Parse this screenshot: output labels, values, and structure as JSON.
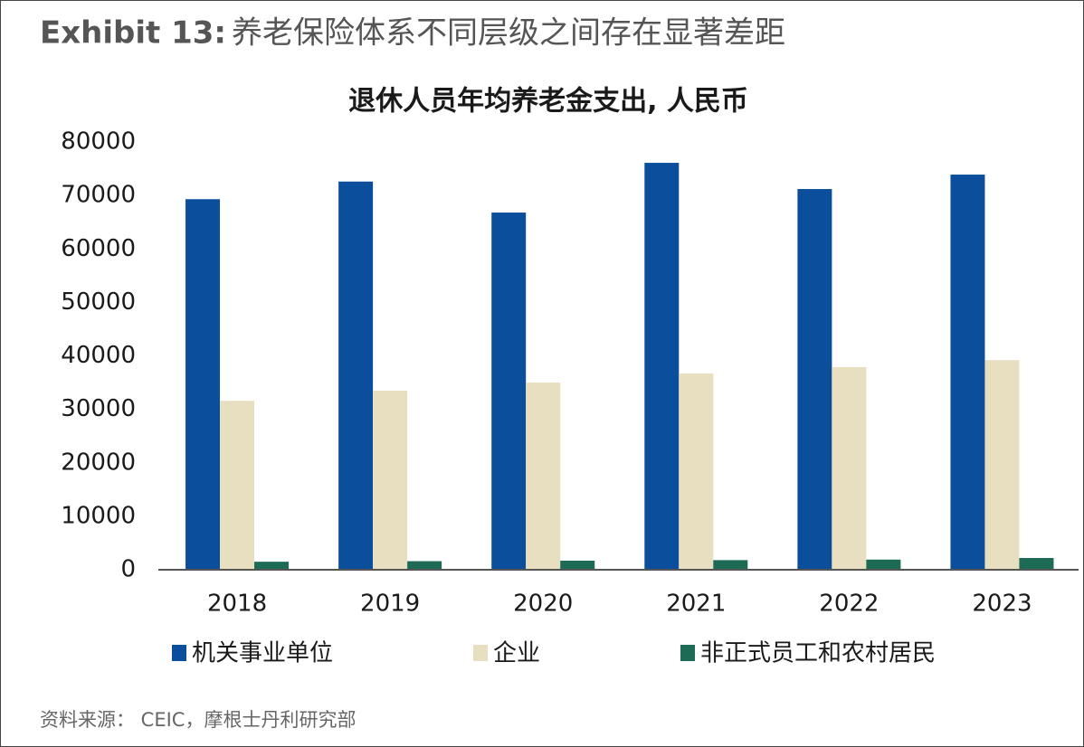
{
  "header": {
    "label": "Exhibit 13:",
    "title": "养老保险体系不同层级之间存在显著差距"
  },
  "chart_data": {
    "type": "bar",
    "title": "退休人员年均养老金支出, 人民币",
    "categories": [
      "2018",
      "2019",
      "2020",
      "2021",
      "2022",
      "2023"
    ],
    "series": [
      {
        "name": "机关事业单位",
        "color": "#0b4f9c",
        "values": [
          69300,
          72600,
          66800,
          76100,
          71200,
          73900
        ]
      },
      {
        "name": "企业",
        "color": "#e8dfc0",
        "values": [
          31600,
          33500,
          35000,
          36700,
          37900,
          39200
        ]
      },
      {
        "name": "非正式员工和农村居民",
        "color": "#1e6b55",
        "values": [
          1500,
          1600,
          1700,
          1800,
          1900,
          2200
        ]
      }
    ],
    "ylim": [
      0,
      80000
    ],
    "yticks": [
      0,
      10000,
      20000,
      30000,
      40000,
      50000,
      60000,
      70000,
      80000
    ],
    "grid": false
  },
  "source": "资料来源： CEIC，摩根士丹利研究部"
}
